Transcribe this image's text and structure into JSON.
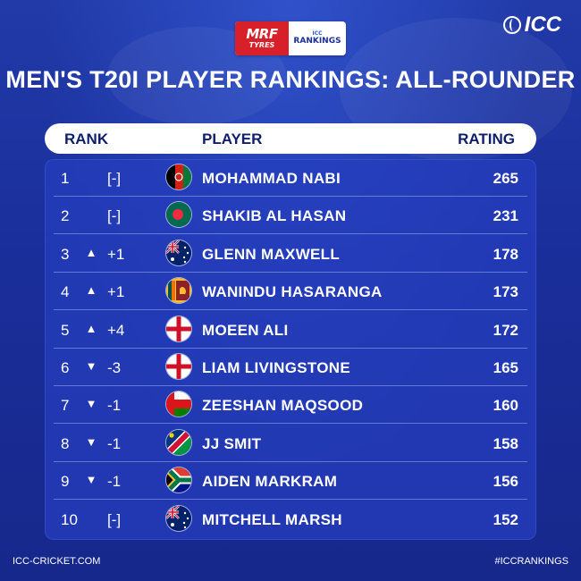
{
  "sponsor": {
    "mrf_line1": "MRF",
    "mrf_line2": "TYRES",
    "icc_small": "ICC",
    "rankings": "RANKINGS"
  },
  "logo": {
    "text": "ICC"
  },
  "title": "MEN'S T20I PLAYER RANKINGS: ALL-ROUNDER",
  "columns": {
    "rank": "RANK",
    "player": "PLAYER",
    "rating": "RATING"
  },
  "rows": [
    {
      "rank": "1",
      "arrow": "",
      "change": "[-]",
      "flag": "afghanistan-flag-icon",
      "player": "MOHAMMAD NABI",
      "rating": "265"
    },
    {
      "rank": "2",
      "arrow": "",
      "change": "[-]",
      "flag": "bangladesh-flag-icon",
      "player": "SHAKIB AL HASAN",
      "rating": "231"
    },
    {
      "rank": "3",
      "arrow": "▲",
      "change": "+1",
      "flag": "australia-flag-icon",
      "player": "GLENN MAXWELL",
      "rating": "178"
    },
    {
      "rank": "4",
      "arrow": "▲",
      "change": "+1",
      "flag": "sri-lanka-flag-icon",
      "player": "WANINDU HASARANGA",
      "rating": "173"
    },
    {
      "rank": "5",
      "arrow": "▲",
      "change": "+4",
      "flag": "england-flag-icon",
      "player": "MOEEN ALI",
      "rating": "172"
    },
    {
      "rank": "6",
      "arrow": "▼",
      "change": "-3",
      "flag": "england-flag-icon",
      "player": "LIAM LIVINGSTONE",
      "rating": "165"
    },
    {
      "rank": "7",
      "arrow": "▼",
      "change": "-1",
      "flag": "oman-flag-icon",
      "player": "ZEESHAN MAQSOOD",
      "rating": "160"
    },
    {
      "rank": "8",
      "arrow": "▼",
      "change": "-1",
      "flag": "namibia-flag-icon",
      "player": "JJ SMIT",
      "rating": "158"
    },
    {
      "rank": "9",
      "arrow": "▼",
      "change": "-1",
      "flag": "south-africa-flag-icon",
      "player": "AIDEN MARKRAM",
      "rating": "156"
    },
    {
      "rank": "10",
      "arrow": "",
      "change": "[-]",
      "flag": "australia-flag-icon",
      "player": "MITCHELL MARSH",
      "rating": "152"
    }
  ],
  "footer": {
    "left": "ICC-CRICKET.COM",
    "right": "#ICCRANKINGS"
  },
  "colors": {
    "background": "#1b2f9c",
    "header_bg": "#ffffff",
    "header_text": "#0f1e6b",
    "mrf_red": "#d8202a"
  }
}
